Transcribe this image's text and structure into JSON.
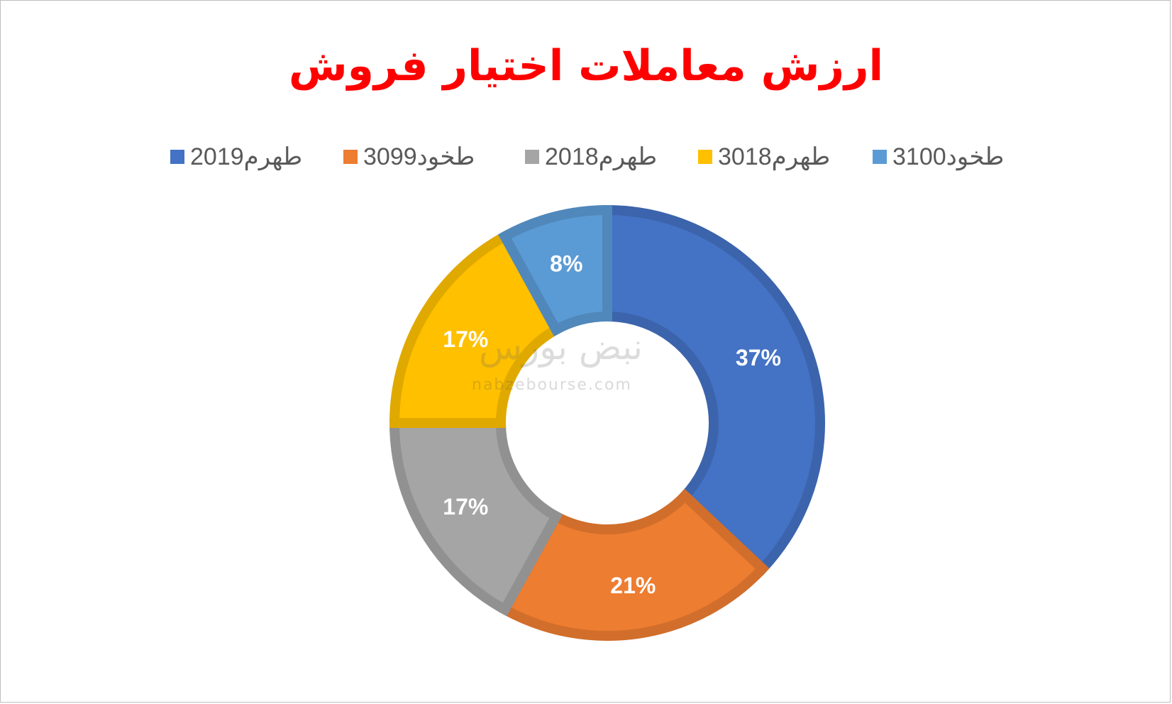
{
  "title": "ارزش معاملات اختیار فروش",
  "watermark": {
    "logo_text": "نبض بورس",
    "site": "nabzebourse.com"
  },
  "chart_data": {
    "type": "pie",
    "style": "donut",
    "title": "ارزش معاملات اختیار فروش",
    "legend_position": "top",
    "slices": [
      {
        "label": "طهرم2019",
        "value": 37,
        "display": "37%",
        "color": "#4472C4"
      },
      {
        "label": "طخود3099",
        "value": 21,
        "display": "21%",
        "color": "#ED7D31"
      },
      {
        "label": "طهرم2018",
        "value": 17,
        "display": "17%",
        "color": "#A5A5A5"
      },
      {
        "label": "طهرم3018",
        "value": 17,
        "display": "17%",
        "color": "#FFC000"
      },
      {
        "label": "طخود3100",
        "value": 8,
        "display": "8%",
        "color": "#5B9BD5"
      }
    ]
  }
}
